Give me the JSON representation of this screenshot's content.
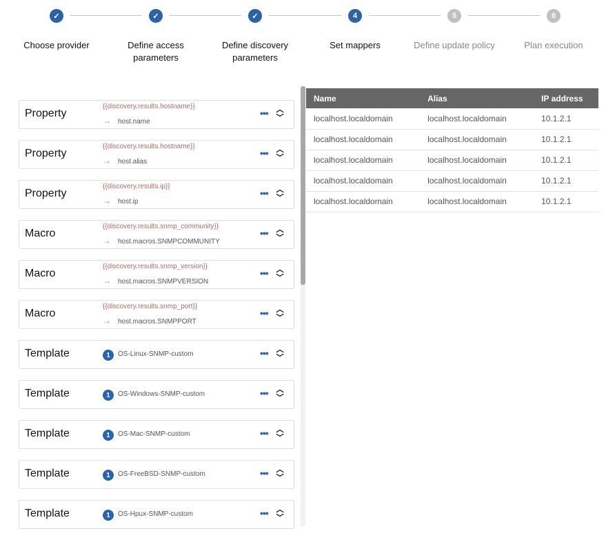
{
  "stepper": {
    "steps": [
      {
        "label": "Choose provider",
        "state": "done",
        "number": "1"
      },
      {
        "label": "Define access parameters",
        "state": "done",
        "number": "2"
      },
      {
        "label": "Define discovery parameters",
        "state": "done",
        "number": "3"
      },
      {
        "label": "Set mappers",
        "state": "active",
        "number": "4"
      },
      {
        "label": "Define update policy",
        "state": "todo",
        "number": "5"
      },
      {
        "label": "Plan execution",
        "state": "todo",
        "number": "6"
      }
    ],
    "check_icon": "✓"
  },
  "mappers": [
    {
      "type": "Property",
      "source": "{{discovery.results.hostname}}",
      "target": "host.name"
    },
    {
      "type": "Property",
      "source": "{{discovery.results.hostname}}",
      "target": "host.alias"
    },
    {
      "type": "Property",
      "source": "{{discovery.results.ip}}",
      "target": "host.ip"
    },
    {
      "type": "Macro",
      "source": "{{discovery.results.snmp_community}}",
      "target": "host.macros.SNMPCOMMUNITY"
    },
    {
      "type": "Macro",
      "source": "{{discovery.results.snmp_version}}",
      "target": "host.macros.SNMPVERSION"
    },
    {
      "type": "Macro",
      "source": "{{discovery.results.snmp_port}}",
      "target": "host.macros.SNMPPORT"
    },
    {
      "type": "Template",
      "badge": "1",
      "name": "OS-Linux-SNMP-custom"
    },
    {
      "type": "Template",
      "badge": "1",
      "name": "OS-Windows-SNMP-custom"
    },
    {
      "type": "Template",
      "badge": "1",
      "name": "OS-Mac-SNMP-custom"
    },
    {
      "type": "Template",
      "badge": "1",
      "name": "OS-FreeBSD-SNMP-custom"
    },
    {
      "type": "Template",
      "badge": "1",
      "name": "OS-Hpux-SNMP-custom"
    }
  ],
  "preview": {
    "columns": [
      "Name",
      "Alias",
      "IP address"
    ],
    "rows": [
      [
        "localhost.localdomain",
        "localhost.localdomain",
        "10.1.2.1"
      ],
      [
        "localhost.localdomain",
        "localhost.localdomain",
        "10.1.2.1"
      ],
      [
        "localhost.localdomain",
        "localhost.localdomain",
        "10.1.2.1"
      ],
      [
        "localhost.localdomain",
        "localhost.localdomain",
        "10.1.2.1"
      ],
      [
        "localhost.localdomain",
        "localhost.localdomain",
        "10.1.2.1"
      ]
    ]
  },
  "colors": {
    "accent": "#2e62a6",
    "header": "#666666",
    "inactive": "#c0c0c0"
  }
}
